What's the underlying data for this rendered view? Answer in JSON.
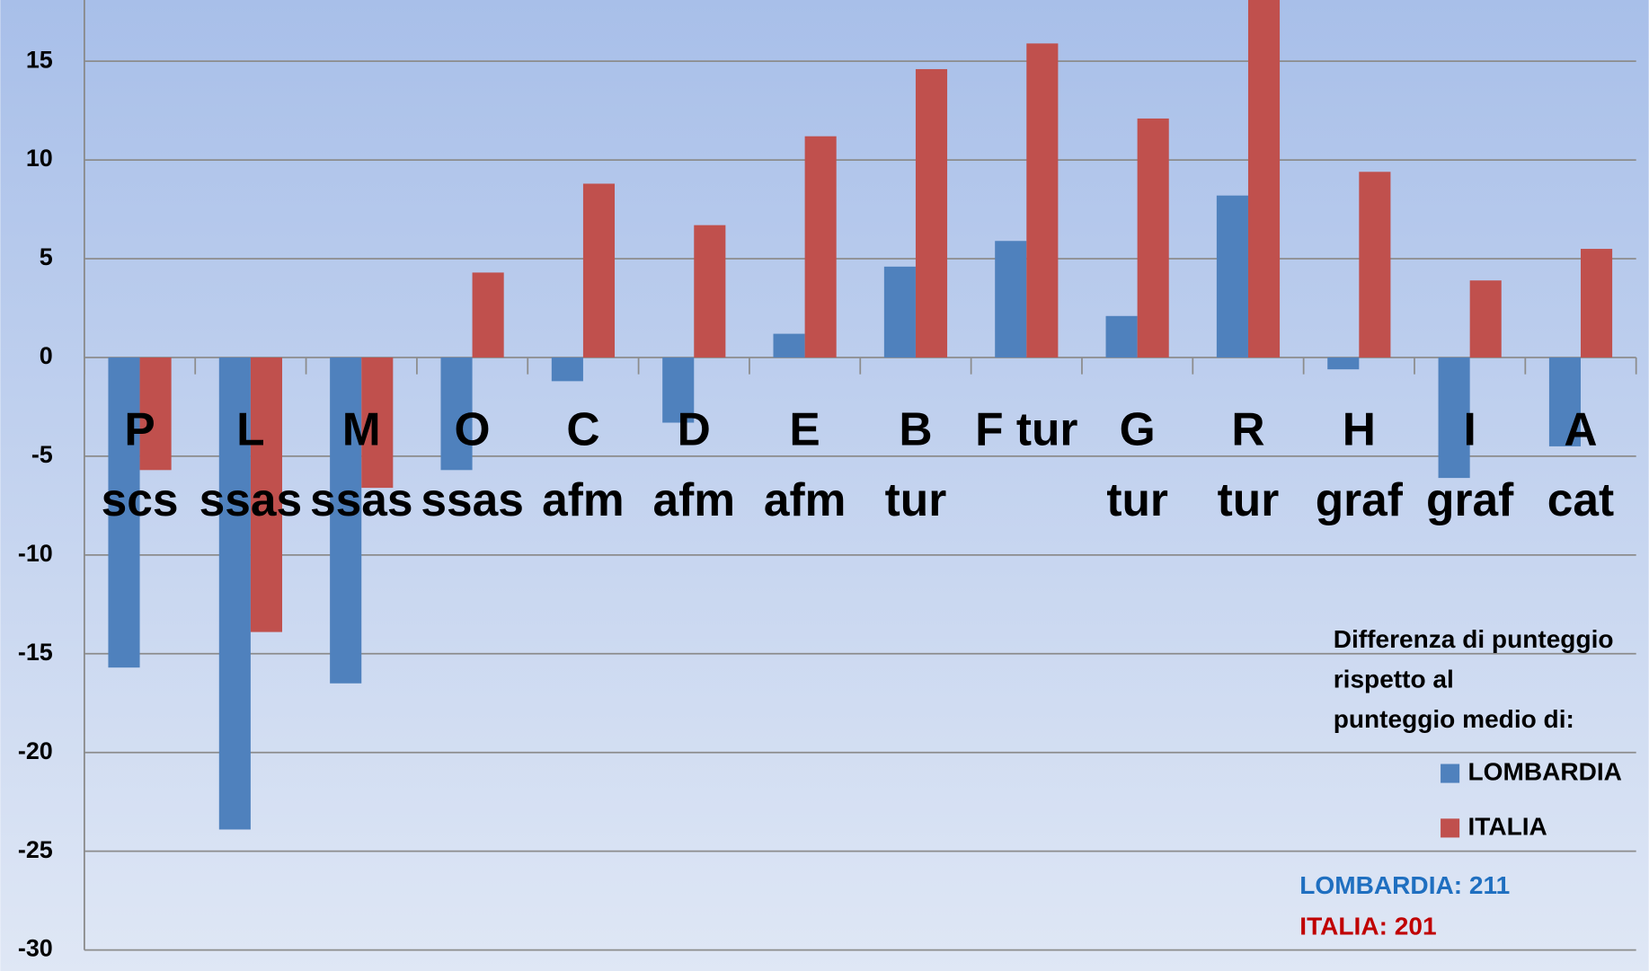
{
  "chart_data": {
    "type": "bar",
    "categories": [
      [
        "P",
        "scs"
      ],
      [
        "L",
        "ssas"
      ],
      [
        "M",
        "ssas"
      ],
      [
        "O",
        "ssas"
      ],
      [
        "C",
        "afm"
      ],
      [
        "D",
        "afm"
      ],
      [
        "E",
        "afm"
      ],
      [
        "B",
        "tur"
      ],
      [
        "F tur"
      ],
      [
        "G",
        "tur"
      ],
      [
        "R",
        "tur"
      ],
      [
        "H",
        "graf"
      ],
      [
        "I",
        "graf"
      ],
      [
        "A",
        "cat"
      ]
    ],
    "series": [
      {
        "name": "LOMBARDIA",
        "color": "#4f81bd",
        "values": [
          -15.7,
          -23.9,
          -16.5,
          -5.7,
          -1.2,
          -3.3,
          1.2,
          4.6,
          5.9,
          2.1,
          8.2,
          -0.6,
          -6.1,
          -4.5
        ]
      },
      {
        "name": "ITALIA",
        "color": "#c0504d",
        "values": [
          -5.7,
          -13.9,
          -6.6,
          4.3,
          8.8,
          6.7,
          11.2,
          14.6,
          15.9,
          12.1,
          19,
          9.4,
          3.9,
          5.5
        ]
      }
    ],
    "ylim": [
      -30,
      18.1
    ],
    "yticks": [
      -30,
      -25,
      -20,
      -15,
      -10,
      -5,
      0,
      5,
      10,
      15
    ],
    "grid": true,
    "legend_title": [
      "Differenza di punteggio",
      "rispetto al",
      "punteggio medio di:"
    ],
    "annotations": [
      {
        "text": "LOMBARDIA: 211",
        "color": "#1f6fc0"
      },
      {
        "text": "ITALIA: 201",
        "color": "#c00000"
      }
    ]
  }
}
